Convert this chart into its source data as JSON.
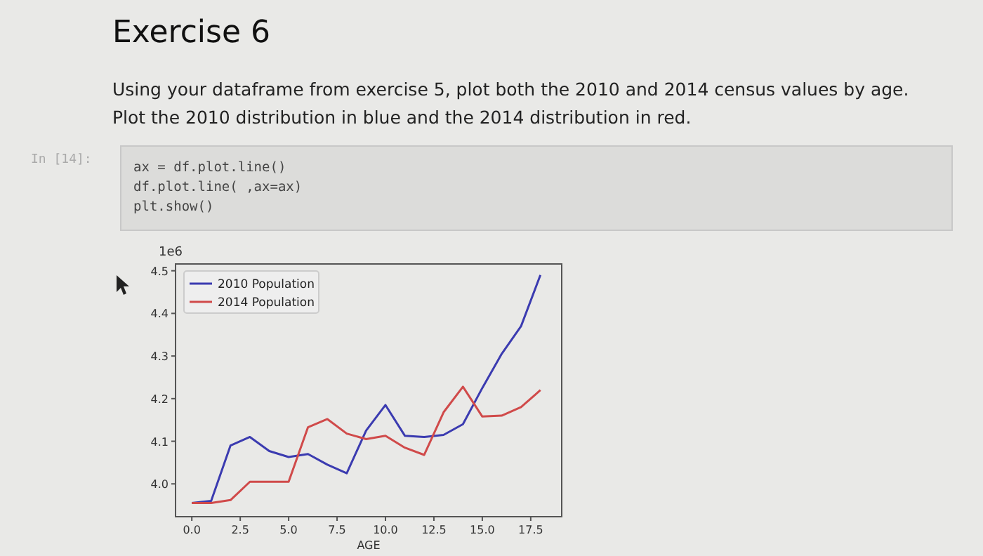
{
  "chart_data": {
    "type": "line",
    "title": "Exercise 6",
    "subtitle": "Using your dataframe from exercise 5, plot both the 2010 and 2014 census values by age. Plot the 2010 distribution in blue and the 2014 distribution in red.",
    "annotations": [
      "In [14]:",
      "ax = df.plot.line()",
      "df.plot.line( ,ax=ax)",
      "plt.show()",
      "1e6"
    ],
    "xlabel": "AGE",
    "x": [
      0,
      1,
      2,
      3,
      4,
      5,
      6,
      7,
      8,
      9,
      10,
      11,
      12,
      13,
      14,
      15,
      16,
      17,
      18
    ],
    "series": [
      {
        "name": "2010 Population",
        "color": "#3b3bb0",
        "values": [
          3.955,
          3.96,
          4.09,
          4.11,
          4.077,
          4.063,
          4.07,
          4.045,
          4.025,
          4.125,
          4.185,
          4.113,
          4.11,
          4.115,
          4.14,
          4.225,
          4.305,
          4.37,
          4.49
        ]
      },
      {
        "name": "2014 Population",
        "color": "#d04a4a",
        "values": [
          3.955,
          3.955,
          3.962,
          4.005,
          4.005,
          4.005,
          4.133,
          4.152,
          4.118,
          4.105,
          4.113,
          4.085,
          4.068,
          4.168,
          4.228,
          4.158,
          4.16,
          4.18,
          4.22
        ]
      }
    ],
    "xlim": [
      -0.84,
      19.1
    ],
    "ylim": [
      3.923,
      4.516
    ],
    "xticks": [
      {
        "value": 0,
        "label": "0.0"
      },
      {
        "value": 2.5,
        "label": "2.5"
      },
      {
        "value": 5,
        "label": "5.0"
      },
      {
        "value": 7.5,
        "label": "7.5"
      },
      {
        "value": 10,
        "label": "10.0"
      },
      {
        "value": 12.5,
        "label": "12.5"
      },
      {
        "value": 15,
        "label": "15.0"
      },
      {
        "value": 17.5,
        "label": "17.5"
      }
    ],
    "yticks": [
      {
        "value": 4.0,
        "label": "4.0"
      },
      {
        "value": 4.1,
        "label": "4.1"
      },
      {
        "value": 4.2,
        "label": "4.2"
      },
      {
        "value": 4.3,
        "label": "4.3"
      },
      {
        "value": 4.4,
        "label": "4.4"
      },
      {
        "value": 4.5,
        "label": "4.5"
      }
    ],
    "legend": "top left",
    "grid": false,
    "line_style": "solid",
    "marker": "none"
  }
}
